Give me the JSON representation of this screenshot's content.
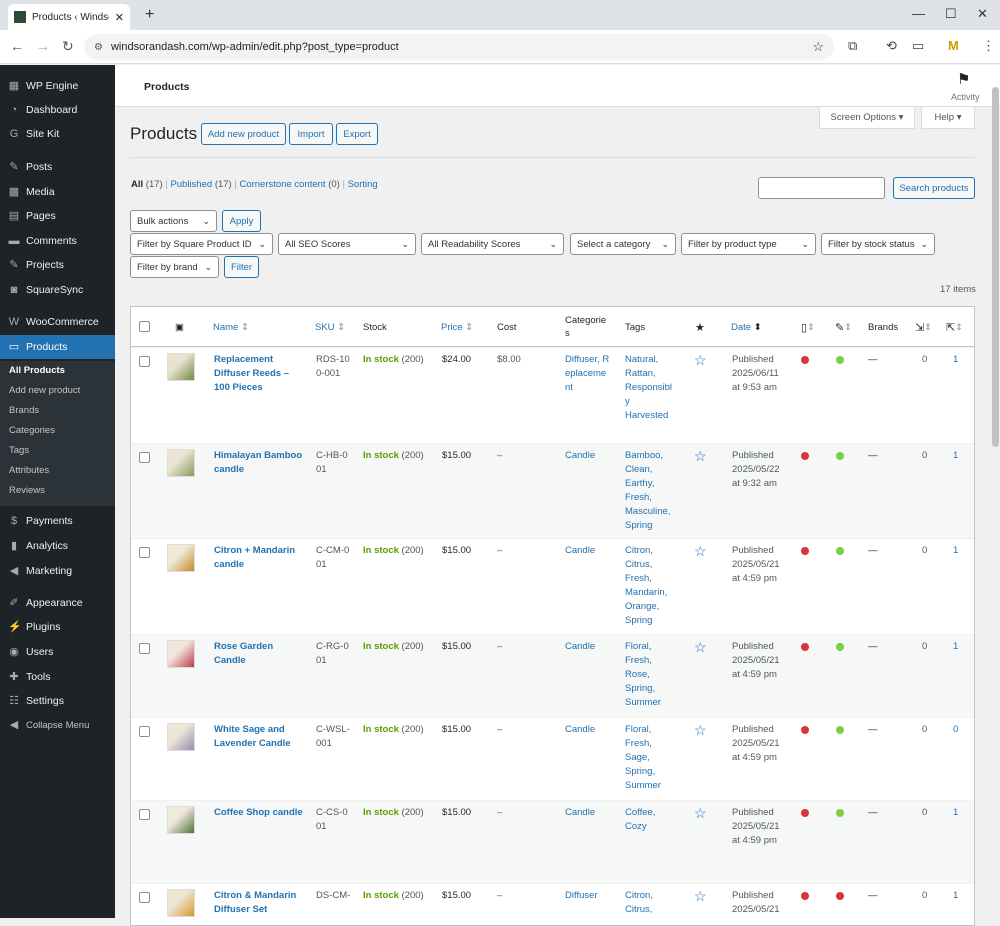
{
  "browser": {
    "tab_title": "Products ‹ Windso",
    "url": "windsorandash.com/wp-admin/edit.php?post_type=product"
  },
  "sidebar": {
    "items": [
      {
        "label": "WP Engine",
        "icon": "wp-engine-icon"
      },
      {
        "label": "Dashboard",
        "icon": "dashboard-icon"
      },
      {
        "label": "Site Kit",
        "icon": "site-kit-icon"
      },
      {
        "label": "Posts",
        "icon": "pin-icon"
      },
      {
        "label": "Media",
        "icon": "media-icon"
      },
      {
        "label": "Pages",
        "icon": "pages-icon"
      },
      {
        "label": "Comments",
        "icon": "comment-icon"
      },
      {
        "label": "Projects",
        "icon": "pin-icon"
      },
      {
        "label": "SquareSync",
        "icon": "square-icon"
      },
      {
        "label": "WooCommerce",
        "icon": "woo-icon"
      },
      {
        "label": "Products",
        "icon": "archive-icon"
      },
      {
        "label": "Payments",
        "icon": "payments-icon"
      },
      {
        "label": "Analytics",
        "icon": "analytics-icon"
      },
      {
        "label": "Marketing",
        "icon": "megaphone-icon"
      },
      {
        "label": "Appearance",
        "icon": "brush-icon"
      },
      {
        "label": "Plugins",
        "icon": "plug-icon"
      },
      {
        "label": "Users",
        "icon": "user-icon"
      },
      {
        "label": "Tools",
        "icon": "wrench-icon"
      },
      {
        "label": "Settings",
        "icon": "settings-icon"
      },
      {
        "label": "Collapse Menu",
        "icon": "collapse-icon"
      }
    ],
    "submenu": [
      "All Products",
      "Add new product",
      "Brands",
      "Categories",
      "Tags",
      "Attributes",
      "Reviews"
    ]
  },
  "topbar": {
    "title": "Products",
    "activity": "Activity"
  },
  "header": {
    "title": "Products",
    "add_new": "Add new product",
    "import": "Import",
    "export": "Export",
    "screen_options": "Screen Options ▾",
    "help": "Help ▾"
  },
  "views": {
    "all": "All",
    "all_count": "(17)",
    "published": "Published",
    "published_count": "(17)",
    "cornerstone": "Cornerstone content",
    "cornerstone_count": "(0)",
    "sorting": "Sorting"
  },
  "search": {
    "button": "Search products",
    "value": ""
  },
  "filters": {
    "bulk_actions": "Bulk actions",
    "apply": "Apply",
    "square_id": "Filter by Square Product ID",
    "seo": "All SEO Scores",
    "readability": "All Readability Scores",
    "category": "Select a category",
    "product_type": "Filter by product type",
    "stock_status": "Filter by stock status",
    "brand": "Filter by brand",
    "filter": "Filter",
    "items_count": "17 items"
  },
  "columns": {
    "name": "Name",
    "sku": "SKU",
    "stock": "Stock",
    "price": "Price",
    "cost": "Cost",
    "categories": "Categorie s",
    "tags": "Tags",
    "date": "Date",
    "brands": "Brands"
  },
  "products": [
    {
      "name": "Replacement Diffuser Reeds – 100 Pieces",
      "sku": "RDS-100-001",
      "stock": "In stock",
      "stock_qty": "(200)",
      "price": "$24.00",
      "cost": "$8.00",
      "categories": "Diffuser, Replacement",
      "tags": "Natural, Rattan, Responsibly Harvested",
      "status": "Published",
      "date": "2025/06/11",
      "time": "at 9:53 am",
      "seo": "red",
      "read": "green",
      "brands": "—",
      "c1": "0",
      "c2": "1"
    },
    {
      "name": "Himalayan Bamboo candle",
      "sku": "C-HB-001",
      "stock": "In stock",
      "stock_qty": "(200)",
      "price": "$15.00",
      "cost": "–",
      "categories": "Candle",
      "tags": "Bamboo, Clean, Earthy, Fresh, Masculine, Spring",
      "status": "Published",
      "date": "2025/05/22",
      "time": "at 9:32 am",
      "seo": "red",
      "read": "green",
      "brands": "—",
      "c1": "0",
      "c2": "1"
    },
    {
      "name": "Citron + Mandarin candle",
      "sku": "C-CM-001",
      "stock": "In stock",
      "stock_qty": "(200)",
      "price": "$15.00",
      "cost": "–",
      "categories": "Candle",
      "tags": "Citron, Citrus, Fresh, Mandarin, Orange, Spring",
      "status": "Published",
      "date": "2025/05/21",
      "time": "at 4:59 pm",
      "seo": "red",
      "read": "green",
      "brands": "—",
      "c1": "0",
      "c2": "1"
    },
    {
      "name": "Rose Garden Candle",
      "sku": "C-RG-001",
      "stock": "In stock",
      "stock_qty": "(200)",
      "price": "$15.00",
      "cost": "–",
      "categories": "Candle",
      "tags": "Floral, Fresh, Rose, Spring, Summer",
      "status": "Published",
      "date": "2025/05/21",
      "time": "at 4:59 pm",
      "seo": "red",
      "read": "green",
      "brands": "—",
      "c1": "0",
      "c2": "1"
    },
    {
      "name": "White Sage and Lavender Candle",
      "sku": "C-WSL-001",
      "stock": "In stock",
      "stock_qty": "(200)",
      "price": "$15.00",
      "cost": "–",
      "categories": "Candle",
      "tags": "Floral, Fresh, Sage, Spring, Summer",
      "status": "Published",
      "date": "2025/05/21",
      "time": "at 4:59 pm",
      "seo": "red",
      "read": "green",
      "brands": "—",
      "c1": "0",
      "c2": "0"
    },
    {
      "name": "Coffee Shop candle",
      "sku": "C-CS-001",
      "stock": "In stock",
      "stock_qty": "(200)",
      "price": "$15.00",
      "cost": "–",
      "categories": "Candle",
      "tags": "Coffee, Cozy",
      "status": "Published",
      "date": "2025/05/21",
      "time": "at 4:59 pm",
      "seo": "red",
      "read": "green",
      "brands": "—",
      "c1": "0",
      "c2": "1"
    },
    {
      "name": "Citron & Mandarin Diffuser Set",
      "sku": "DS-CM-",
      "stock": "In stock",
      "stock_qty": "(200)",
      "price": "$15.00",
      "cost": "–",
      "categories": "Diffuser",
      "tags": "Citron, Citrus,",
      "status": "Published",
      "date": "2025/05/21",
      "time": "",
      "seo": "red",
      "read": "red",
      "brands": "—",
      "c1": "0",
      "c2": "1"
    }
  ],
  "colors": {
    "accent": "#2271b1",
    "sidebar": "#1d2327",
    "in_stock": "#5b9e00",
    "red": "#d63638",
    "green": "#7ad03a"
  }
}
